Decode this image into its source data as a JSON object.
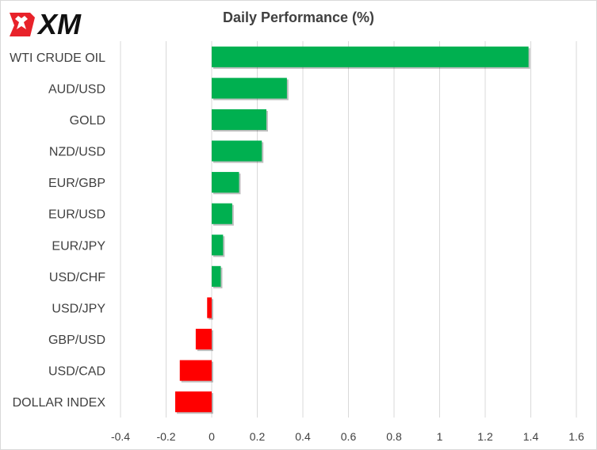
{
  "logo": {
    "text": "XM"
  },
  "colors": {
    "positive": "#00b050",
    "negative": "#ff0000",
    "text": "#404040",
    "grid": "#d9d9d9",
    "logo_red": "#e8222a",
    "logo_black": "#111111"
  },
  "chart_data": {
    "type": "bar",
    "orientation": "horizontal",
    "title": "Daily Performance  (%)",
    "categories": [
      "WTI CRUDE OIL",
      "AUD/USD",
      "GOLD",
      "NZD/USD",
      "EUR/GBP",
      "EUR/USD",
      "EUR/JPY",
      "USD/CHF",
      "USD/JPY",
      "GBP/USD",
      "USD/CAD",
      "DOLLAR INDEX"
    ],
    "values": [
      1.39,
      0.33,
      0.24,
      0.22,
      0.12,
      0.09,
      0.05,
      0.04,
      -0.02,
      -0.07,
      -0.14,
      -0.16
    ],
    "xlim": [
      -0.4,
      1.6
    ],
    "xticks": [
      -0.4,
      -0.2,
      0,
      0.2,
      0.4,
      0.6,
      0.8,
      1,
      1.2,
      1.4,
      1.6
    ],
    "grid": true,
    "legend": "none"
  }
}
